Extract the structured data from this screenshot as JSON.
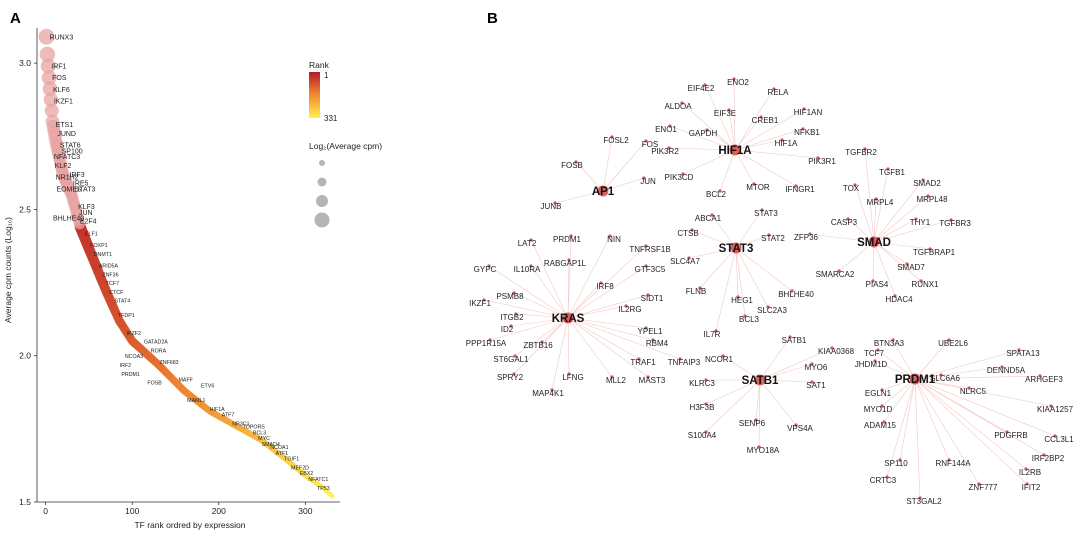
{
  "panels": {
    "a": "A",
    "b": "B"
  },
  "chart_data": [
    {
      "type": "scatter",
      "panel": "A",
      "title": "",
      "xlabel": "TF rank ordred by expression",
      "ylabel": "Average cpm counts (Log₁₀)",
      "xlim": [
        -10,
        340
      ],
      "ylim": [
        1.5,
        3.12
      ],
      "x_ticks": [
        0,
        100,
        200,
        300
      ],
      "y_ticks": [
        1.5,
        2.0,
        2.5,
        3.0
      ],
      "y_tick_labels": [
        "1.5",
        "2.0",
        "2.5",
        "3.0"
      ],
      "rank_range": [
        1,
        331
      ],
      "legend": {
        "placement": "top-right",
        "rank_title": "Rank",
        "rank_max_label": "1",
        "rank_min_label": "331",
        "size_title": "Log₂(Average cpm)"
      },
      "colors": {
        "high": "#b2182b",
        "mid": "#f08030",
        "low": "#fff14d",
        "large_point": "#e8a3a3"
      },
      "labels": [
        {
          "rank": 1,
          "value": 3.09,
          "text": "RUNX3"
        },
        {
          "rank": 3,
          "value": 2.99,
          "text": "IRF1"
        },
        {
          "rank": 4,
          "value": 2.95,
          "text": "FOS"
        },
        {
          "rank": 5,
          "value": 2.91,
          "text": "KLF6"
        },
        {
          "rank": 6,
          "value": 2.87,
          "text": "IKZF1"
        },
        {
          "rank": 8,
          "value": 2.79,
          "text": "ETS1"
        },
        {
          "rank": 10,
          "value": 2.76,
          "text": "JUND"
        },
        {
          "rank": 13,
          "value": 2.72,
          "text": "STAT6"
        },
        {
          "rank": 15,
          "value": 2.7,
          "text": "SP100"
        },
        {
          "rank": 6,
          "value": 2.68,
          "text": "NFATC3"
        },
        {
          "rank": 7,
          "value": 2.65,
          "text": "KLF2"
        },
        {
          "rank": 8,
          "value": 2.61,
          "text": "NR1H2"
        },
        {
          "rank": 24,
          "value": 2.62,
          "text": "IRF3"
        },
        {
          "rank": 9,
          "value": 2.57,
          "text": "EOMES"
        },
        {
          "rank": 28,
          "value": 2.59,
          "text": "IRE5"
        },
        {
          "rank": 30,
          "value": 2.57,
          "text": "STAT3"
        },
        {
          "rank": 34,
          "value": 2.51,
          "text": "KLF3"
        },
        {
          "rank": 35,
          "value": 2.49,
          "text": "JUN"
        },
        {
          "rank": 5,
          "value": 2.47,
          "text": "BHLHE40"
        },
        {
          "rank": 36,
          "value": 2.46,
          "text": "E2F4"
        },
        {
          "rank": 42,
          "value": 2.42,
          "text": "ELF1"
        },
        {
          "rank": 48,
          "value": 2.38,
          "text": "FOXP1"
        },
        {
          "rank": 52,
          "value": 2.35,
          "text": "DNMT1"
        },
        {
          "rank": 58,
          "value": 2.31,
          "text": "ARID5A"
        },
        {
          "rank": 62,
          "value": 2.28,
          "text": "ZNF36"
        },
        {
          "rank": 66,
          "value": 2.25,
          "text": "TCF7"
        },
        {
          "rank": 70,
          "value": 2.22,
          "text": "CTCF"
        },
        {
          "rank": 76,
          "value": 2.19,
          "text": "STAT4"
        },
        {
          "rank": 80,
          "value": 2.14,
          "text": "TFDP1"
        },
        {
          "rank": 90,
          "value": 2.08,
          "text": "IKZF2"
        },
        {
          "rank": 110,
          "value": 2.05,
          "text": "GATAD2A"
        },
        {
          "rank": 118,
          "value": 2.02,
          "text": "RORA"
        },
        {
          "rank": 88,
          "value": 2.0,
          "text": "NCOA3"
        },
        {
          "rank": 128,
          "value": 1.98,
          "text": "ZNF683"
        },
        {
          "rank": 82,
          "value": 1.97,
          "text": "IRF2"
        },
        {
          "rank": 84,
          "value": 1.94,
          "text": "PRDM1"
        },
        {
          "rank": 114,
          "value": 1.91,
          "text": "FOSB"
        },
        {
          "rank": 150,
          "value": 1.92,
          "text": "MAFF"
        },
        {
          "rank": 176,
          "value": 1.9,
          "text": "ETV6"
        },
        {
          "rank": 160,
          "value": 1.85,
          "text": "MAML1"
        },
        {
          "rank": 186,
          "value": 1.82,
          "text": "HIF1A"
        },
        {
          "rank": 200,
          "value": 1.8,
          "text": "ATF7"
        },
        {
          "rank": 212,
          "value": 1.77,
          "text": "NR3C1"
        },
        {
          "rank": 224,
          "value": 1.76,
          "text": "TOPORS"
        },
        {
          "rank": 236,
          "value": 1.74,
          "text": "BCL3"
        },
        {
          "rank": 242,
          "value": 1.72,
          "text": "MYC"
        },
        {
          "rank": 246,
          "value": 1.7,
          "text": "SMAD4"
        },
        {
          "rank": 256,
          "value": 1.69,
          "text": "NCOA1"
        },
        {
          "rank": 262,
          "value": 1.67,
          "text": "ATF1"
        },
        {
          "rank": 272,
          "value": 1.65,
          "text": "TGIF1"
        },
        {
          "rank": 280,
          "value": 1.62,
          "text": "MEF2D"
        },
        {
          "rank": 290,
          "value": 1.6,
          "text": "EBX2"
        },
        {
          "rank": 300,
          "value": 1.58,
          "text": "NFATC1"
        },
        {
          "rank": 310,
          "value": 1.55,
          "text": "TP53"
        }
      ]
    },
    {
      "type": "network",
      "panel": "B",
      "edge_color": "#f4c6c6",
      "node_color": "#c9585c",
      "hubs": [
        {
          "id": "HIF1A",
          "genes": [
            "EIF4E2",
            "ENO2",
            "RELA",
            "HIF1AN",
            "ALDOA",
            "EIF3E",
            "CREB1",
            "NFKB1",
            "ENO1",
            "GAPDH",
            "HIF1A",
            "PIK3R1",
            "PIK3R2",
            "PIK3CD",
            "BCL2",
            "MTOR",
            "IFNGR1"
          ]
        },
        {
          "id": "AP1",
          "genes": [
            "FOSL2",
            "FOS",
            "FOSB",
            "JUN",
            "JUNB"
          ]
        },
        {
          "id": "SMAD",
          "genes": [
            "TGFBR2",
            "TOX",
            "TGFB1",
            "SMAD2",
            "MRPL4",
            "MRPL48",
            "CASP3",
            "THY1",
            "TGFBR3",
            "TGFBRAP1",
            "SMARCA2",
            "SMAD7",
            "PIAS4",
            "RUNX1",
            "HDAC4",
            "ZFP36"
          ]
        },
        {
          "id": "STAT3",
          "genes": [
            "ABCA1",
            "STAT3",
            "STAT2",
            "CTSB",
            "SLC4A7",
            "FLNB",
            "HEG1",
            "BHLHE40",
            "SLC2A3",
            "BCL3",
            "IL7R"
          ]
        },
        {
          "id": "KRAS",
          "genes": [
            "LAT2",
            "PRDM1",
            "NIN",
            "TNFRSF1B",
            "RABGAP1L",
            "GTF3C5",
            "GYPC",
            "IL10RA",
            "IRF8",
            "SIDT1",
            "IKZF1",
            "PSMB8",
            "IL2RG",
            "ITGB2",
            "YPEL1",
            "ID2",
            "RBM4",
            "PPP1R15A",
            "ZBTB16",
            "ST6GAL1",
            "TRAF1",
            "TNFAIP3",
            "SPRY2",
            "LFNG",
            "MLL2",
            "MAST3",
            "MAP4K1"
          ]
        },
        {
          "id": "SATB1",
          "genes": [
            "SATB1",
            "KIAA0368",
            "NCOR1",
            "MYO6",
            "KLRC3",
            "SAT1",
            "H3F3B",
            "SENP6",
            "VPS4A",
            "S100A4",
            "MYO18A"
          ]
        },
        {
          "id": "PRDM1",
          "genes": [
            "BTN3A3",
            "UBE2L6",
            "TCF7",
            "SPATA13",
            "JHDM1D",
            "DENND5A",
            "ARHGEF3",
            "SLC6A6",
            "NLRC5",
            "EGLN1",
            "KIAA1257",
            "MYO1D",
            "ADAM15",
            "PDGFRB",
            "CCL3L1",
            "IRF2BP2",
            "SP110",
            "RNF144A",
            "IL2RB",
            "CRTC3",
            "ZNF777",
            "IFIT2",
            "ST3GAL2"
          ]
        }
      ]
    }
  ]
}
